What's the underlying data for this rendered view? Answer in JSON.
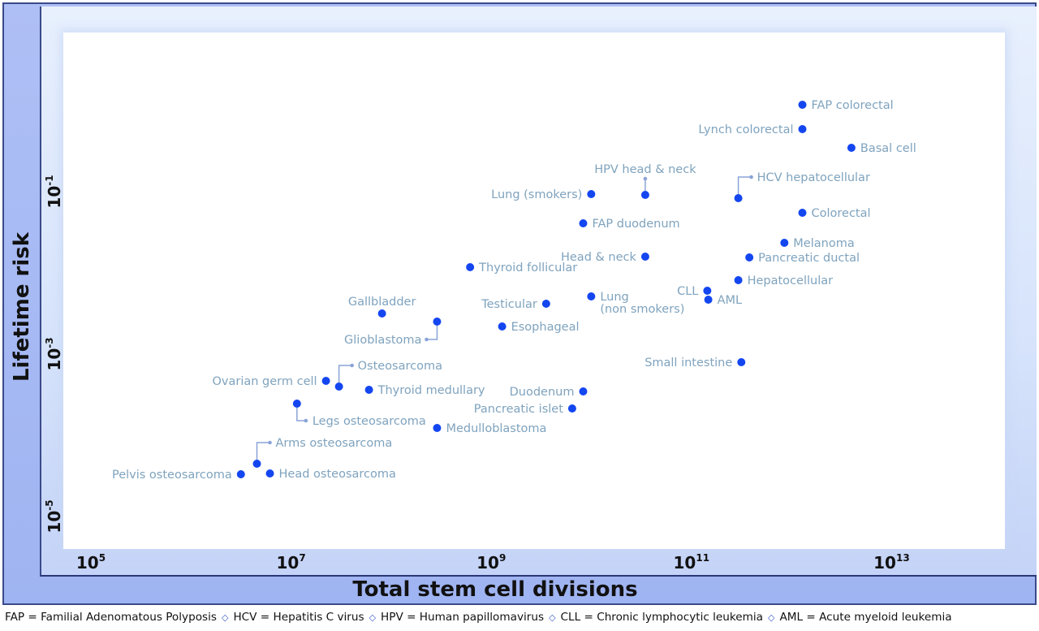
{
  "chart_data": {
    "type": "scatter",
    "title": "",
    "xlabel": "Total stem cell divisions",
    "ylabel": "Lifetime risk",
    "xscale": "log",
    "yscale": "log",
    "xlim_log10": [
      4.8,
      13.85
    ],
    "ylim_log10": [
      -5.35,
      0.9
    ],
    "x_ticks": [
      {
        "base": "10",
        "exp": "5",
        "log": 5
      },
      {
        "base": "10",
        "exp": "7",
        "log": 7
      },
      {
        "base": "10",
        "exp": "9",
        "log": 9
      },
      {
        "base": "10",
        "exp": "11",
        "log": 11
      },
      {
        "base": "10",
        "exp": "13",
        "log": 13
      }
    ],
    "y_ticks": [
      {
        "base": "10",
        "exp": "-1",
        "log": -1
      },
      {
        "base": "10",
        "exp": "-3",
        "log": -3
      },
      {
        "base": "10",
        "exp": "-5",
        "log": -5
      }
    ],
    "grid": false,
    "marker_color": "#1446f0",
    "label_color": "#7fa3be",
    "points": [
      {
        "label": "FAP colorectal",
        "log_x": 12.06,
        "log_y": 0.11,
        "label_pos": "right"
      },
      {
        "label": "Lynch colorectal",
        "log_x": 12.06,
        "log_y": -0.19,
        "label_pos": "left"
      },
      {
        "label": "Basal cell",
        "log_x": 12.55,
        "log_y": -0.42,
        "label_pos": "right"
      },
      {
        "label": "HCV hepatocellular",
        "log_x": 11.42,
        "log_y": -1.04,
        "label_pos": "callout-up-right"
      },
      {
        "label": "HPV head & neck",
        "log_x": 10.49,
        "log_y": -1.0,
        "label_pos": "callout-up"
      },
      {
        "label": "Lung (smokers)",
        "log_x": 9.95,
        "log_y": -0.99,
        "label_pos": "left"
      },
      {
        "label": "FAP duodenum",
        "log_x": 9.87,
        "log_y": -1.35,
        "label_pos": "right"
      },
      {
        "label": "Colorectal",
        "log_x": 12.06,
        "log_y": -1.22,
        "label_pos": "right"
      },
      {
        "label": "Melanoma",
        "log_x": 11.88,
        "log_y": -1.59,
        "label_pos": "right"
      },
      {
        "label": "Pancreatic ductal",
        "log_x": 11.53,
        "log_y": -1.77,
        "label_pos": "right"
      },
      {
        "label": "Head & neck",
        "log_x": 10.49,
        "log_y": -1.76,
        "label_pos": "left"
      },
      {
        "label": "Thyroid follicular",
        "log_x": 8.74,
        "log_y": -1.89,
        "label_pos": "right"
      },
      {
        "label": "Hepatocellular",
        "log_x": 11.42,
        "log_y": -2.05,
        "label_pos": "right"
      },
      {
        "label": "CLL",
        "log_x": 11.11,
        "log_y": -2.18,
        "label_pos": "left"
      },
      {
        "label": "AML",
        "log_x": 11.12,
        "log_y": -2.29,
        "label_pos": "right"
      },
      {
        "label": "Lung (non smokers)",
        "log_x": 9.95,
        "log_y": -2.25,
        "label_pos": "right-twoline",
        "label_lines": [
          "Lung",
          "(non smokers)"
        ]
      },
      {
        "label": "Testicular",
        "log_x": 9.5,
        "log_y": -2.34,
        "label_pos": "left"
      },
      {
        "label": "Gallbladder",
        "log_x": 7.86,
        "log_y": -2.46,
        "label_pos": "above"
      },
      {
        "label": "Glioblastoma",
        "log_x": 8.41,
        "log_y": -2.56,
        "label_pos": "callout-down-left"
      },
      {
        "label": "Esophageal",
        "log_x": 9.06,
        "log_y": -2.62,
        "label_pos": "right"
      },
      {
        "label": "Small intestine",
        "log_x": 11.45,
        "log_y": -3.06,
        "label_pos": "left"
      },
      {
        "label": "Osteosarcoma",
        "log_x": 7.43,
        "log_y": -3.36,
        "label_pos": "callout-up-right"
      },
      {
        "label": "Ovarian germ cell",
        "log_x": 7.3,
        "log_y": -3.29,
        "label_pos": "left"
      },
      {
        "label": "Thyroid medullary",
        "log_x": 7.73,
        "log_y": -3.4,
        "label_pos": "right"
      },
      {
        "label": "Duodenum",
        "log_x": 9.87,
        "log_y": -3.42,
        "label_pos": "left"
      },
      {
        "label": "Pancreatic islet",
        "log_x": 9.76,
        "log_y": -3.63,
        "label_pos": "left"
      },
      {
        "label": "Legs osteosarcoma",
        "log_x": 7.01,
        "log_y": -3.57,
        "label_pos": "callout-down-right"
      },
      {
        "label": "Medulloblastoma",
        "log_x": 8.41,
        "log_y": -3.87,
        "label_pos": "right"
      },
      {
        "label": "Arms osteosarcoma",
        "log_x": 6.61,
        "log_y": -4.31,
        "label_pos": "callout-up-right"
      },
      {
        "label": "Pelvis osteosarcoma",
        "log_x": 6.45,
        "log_y": -4.44,
        "label_pos": "left"
      },
      {
        "label": "Head osteosarcoma",
        "log_x": 6.74,
        "log_y": -4.43,
        "label_pos": "right"
      }
    ]
  },
  "footnote": [
    "FAP = Familial Adenomatous Polyposis",
    "HCV = Hepatitis C virus",
    "HPV = Human papillomavirus",
    "CLL = Chronic lymphocytic leukemia",
    "AML = Acute myeloid leukemia"
  ],
  "footnote_separator": "◇"
}
